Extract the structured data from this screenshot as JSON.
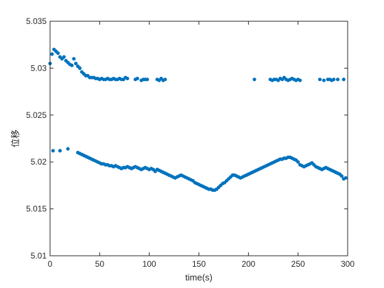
{
  "chart_data": {
    "type": "scatter",
    "title": "",
    "xlabel": "time(s)",
    "ylabel": "位移",
    "xlim": [
      0,
      300
    ],
    "ylim": [
      5.01,
      5.035
    ],
    "xticks": [
      0,
      50,
      100,
      150,
      200,
      250,
      300
    ],
    "yticks": [
      5.01,
      5.015,
      5.02,
      5.025,
      5.03,
      5.035
    ],
    "xtick_labels": [
      "0",
      "50",
      "100",
      "150",
      "200",
      "250",
      "300"
    ],
    "ytick_labels": [
      "5.01",
      "5.015",
      "5.02",
      "5.025",
      "5.03",
      "5.035"
    ],
    "grid": false,
    "legend": "none",
    "marker_color": "#0072BD",
    "series": [
      {
        "x": [
          0,
          2,
          4,
          6,
          8,
          10,
          12,
          14,
          16,
          18,
          20,
          22,
          24,
          26,
          28,
          30,
          32,
          34,
          36,
          38,
          40,
          42,
          44,
          46,
          48,
          50,
          52,
          54,
          56,
          58,
          60,
          62,
          64,
          66,
          68,
          70,
          72,
          74,
          76,
          78,
          86,
          88,
          92,
          94,
          96,
          98,
          108,
          110,
          112,
          114,
          116,
          206,
          222,
          224,
          226,
          228,
          230,
          232,
          234,
          236,
          238,
          240,
          242,
          244,
          246,
          248,
          250,
          252,
          272,
          276,
          280,
          282,
          284,
          286,
          290,
          296
        ],
        "y": [
          5.0305,
          5.0315,
          5.032,
          5.0318,
          5.0316,
          5.0312,
          5.031,
          5.0312,
          5.0308,
          5.0306,
          5.0304,
          5.0303,
          5.031,
          5.0305,
          5.0302,
          5.03,
          5.0296,
          5.0294,
          5.0292,
          5.0292,
          5.029,
          5.029,
          5.029,
          5.0289,
          5.0289,
          5.0288,
          5.0289,
          5.0288,
          5.0288,
          5.0289,
          5.0288,
          5.0288,
          5.0289,
          5.0288,
          5.0288,
          5.0289,
          5.0288,
          5.0288,
          5.029,
          5.0289,
          5.0288,
          5.0289,
          5.0287,
          5.0288,
          5.0288,
          5.0288,
          5.0288,
          5.0287,
          5.0289,
          5.0287,
          5.0288,
          5.0288,
          5.0288,
          5.0287,
          5.0288,
          5.0288,
          5.0287,
          5.0289,
          5.0288,
          5.029,
          5.0288,
          5.0287,
          5.0288,
          5.0289,
          5.0288,
          5.0287,
          5.0288,
          5.0287,
          5.0288,
          5.0287,
          5.0288,
          5.0288,
          5.0287,
          5.0288,
          5.0288,
          5.0288
        ]
      },
      {
        "x": [
          3,
          10,
          18,
          28,
          30,
          32,
          34,
          36,
          38,
          40,
          42,
          44,
          46,
          48,
          50,
          52,
          54,
          56,
          58,
          60,
          62,
          64,
          66,
          68,
          70,
          72,
          74,
          76,
          78,
          80,
          82,
          84,
          86,
          88,
          90,
          92,
          94,
          96,
          98,
          100,
          102,
          104,
          106,
          108,
          110,
          112,
          114,
          116,
          118,
          120,
          122,
          124,
          126,
          128,
          130,
          132,
          134,
          136,
          138,
          140,
          142,
          144,
          146,
          148,
          150,
          152,
          154,
          156,
          158,
          160,
          162,
          164,
          166,
          168,
          170,
          172,
          174,
          176,
          178,
          180,
          182,
          184,
          186,
          188,
          190,
          192,
          194,
          196,
          198,
          200,
          202,
          204,
          206,
          208,
          210,
          212,
          214,
          216,
          218,
          220,
          222,
          224,
          226,
          228,
          230,
          232,
          234,
          236,
          238,
          240,
          242,
          244,
          246,
          248,
          250,
          252,
          254,
          256,
          258,
          260,
          262,
          264,
          266,
          268,
          270,
          272,
          274,
          276,
          278,
          280,
          282,
          284,
          286,
          288,
          290,
          292,
          294,
          296,
          298
        ],
        "y": [
          5.0212,
          5.0212,
          5.0214,
          5.021,
          5.0209,
          5.0208,
          5.0207,
          5.0206,
          5.0205,
          5.0204,
          5.0203,
          5.0202,
          5.0201,
          5.02,
          5.0199,
          5.0198,
          5.0198,
          5.0197,
          5.0197,
          5.0196,
          5.0196,
          5.0195,
          5.0196,
          5.0195,
          5.0194,
          5.0193,
          5.0194,
          5.0194,
          5.0195,
          5.0194,
          5.0193,
          5.0194,
          5.0195,
          5.0194,
          5.0193,
          5.0192,
          5.0193,
          5.0194,
          5.0193,
          5.0192,
          5.0193,
          5.0192,
          5.019,
          5.0192,
          5.0191,
          5.019,
          5.0189,
          5.0188,
          5.0187,
          5.0186,
          5.0185,
          5.0184,
          5.0183,
          5.0184,
          5.0185,
          5.0186,
          5.0185,
          5.0184,
          5.0183,
          5.0182,
          5.0181,
          5.018,
          5.0178,
          5.0177,
          5.0176,
          5.0175,
          5.0174,
          5.0173,
          5.0172,
          5.0171,
          5.0171,
          5.017,
          5.017,
          5.0171,
          5.0173,
          5.0175,
          5.0177,
          5.0178,
          5.018,
          5.0182,
          5.0184,
          5.0186,
          5.0186,
          5.0185,
          5.0184,
          5.0183,
          5.0184,
          5.0185,
          5.0186,
          5.0187,
          5.0188,
          5.0189,
          5.019,
          5.0191,
          5.0192,
          5.0193,
          5.0194,
          5.0195,
          5.0196,
          5.0197,
          5.0198,
          5.0199,
          5.02,
          5.0201,
          5.0202,
          5.0203,
          5.0203,
          5.0204,
          5.0204,
          5.0205,
          5.0205,
          5.0204,
          5.0203,
          5.0202,
          5.02,
          5.0197,
          5.0196,
          5.0195,
          5.0196,
          5.0197,
          5.0198,
          5.0199,
          5.0197,
          5.0195,
          5.0194,
          5.0193,
          5.0192,
          5.0193,
          5.0194,
          5.0193,
          5.0192,
          5.0191,
          5.019,
          5.0189,
          5.0188,
          5.0187,
          5.0185,
          5.0182,
          5.0183
        ]
      }
    ]
  }
}
